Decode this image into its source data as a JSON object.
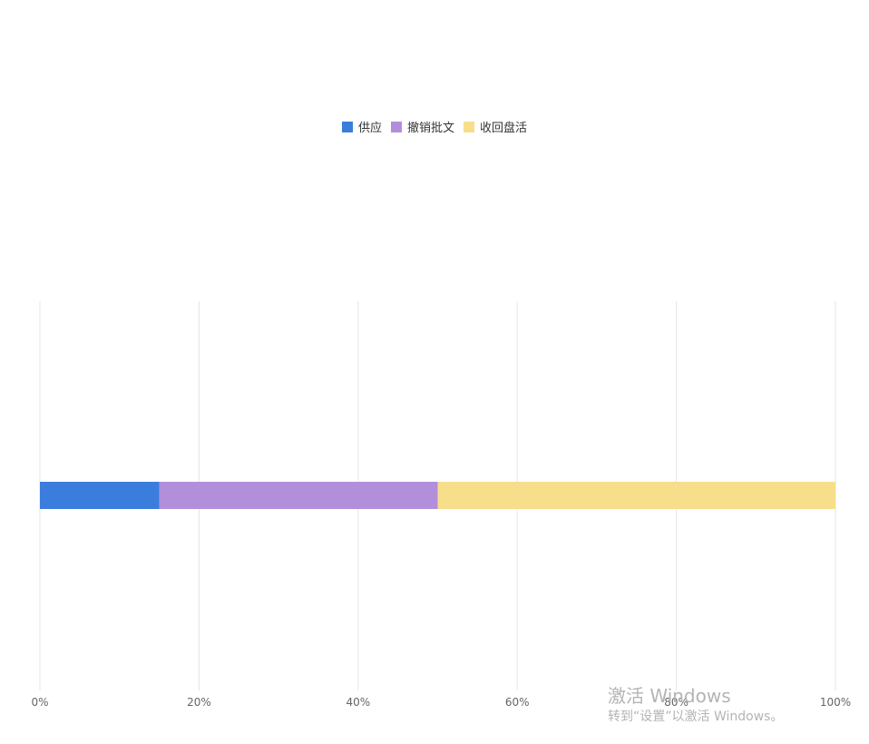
{
  "chart_data": {
    "type": "bar",
    "orientation": "horizontal",
    "stacked": true,
    "normalized_percent": true,
    "title": "",
    "xlabel": "",
    "ylabel": "",
    "xlim": [
      0,
      100
    ],
    "x_ticks": [
      "0%",
      "20%",
      "40%",
      "60%",
      "80%",
      "100%"
    ],
    "grid": "vertical",
    "legend_position": "top-center",
    "categories": [
      ""
    ],
    "series": [
      {
        "name": "供应",
        "color": "#3b7ddd",
        "values": [
          15
        ]
      },
      {
        "name": "撤销批文",
        "color": "#b18fdb",
        "values": [
          35
        ]
      },
      {
        "name": "收回盘活",
        "color": "#f7de8b",
        "values": [
          50
        ]
      }
    ]
  },
  "watermark": {
    "title": "激活 Windows",
    "subtitle": "转到“设置”以激活 Windows。"
  }
}
